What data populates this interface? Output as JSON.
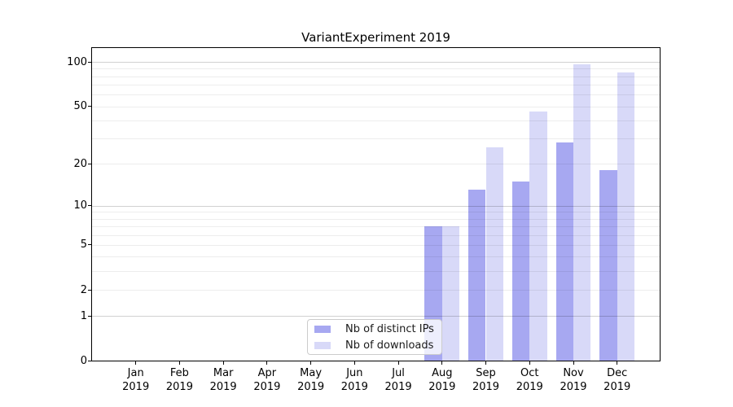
{
  "chart_data": {
    "type": "bar",
    "title": "VariantExperiment 2019",
    "categories": [
      "Jan 2019",
      "Feb 2019",
      "Mar 2019",
      "Apr 2019",
      "May 2019",
      "Jun 2019",
      "Jul 2019",
      "Aug 2019",
      "Sep 2019",
      "Oct 2019",
      "Nov 2019",
      "Dec 2019"
    ],
    "series": [
      {
        "name": "Nb of distinct IPs",
        "color": "#a7a8f1",
        "values": [
          0,
          0,
          0,
          0,
          0,
          0,
          0,
          7,
          13,
          15,
          28,
          18
        ]
      },
      {
        "name": "Nb of downloads",
        "color": "#d8d9f8",
        "values": [
          0,
          0,
          0,
          0,
          0,
          0,
          0,
          7,
          26,
          46,
          97,
          85
        ]
      }
    ],
    "xlabel": "",
    "ylabel": "",
    "yscale": "log1p",
    "ylim": [
      0,
      125
    ],
    "ytick_labels": [
      "0",
      "1",
      "2",
      "5",
      "10",
      "20",
      "50",
      "100"
    ],
    "ytick_values": [
      0,
      1,
      2,
      5,
      10,
      20,
      50,
      100
    ],
    "major_grid_values": [
      1,
      10,
      100
    ],
    "minor_grid_values": [
      2,
      3,
      4,
      5,
      6,
      7,
      8,
      9,
      20,
      30,
      40,
      50,
      60,
      70,
      80,
      90
    ],
    "grid": true,
    "legend_position": "lower center",
    "legend_entries": [
      "Nb of distinct IPs",
      "Nb of downloads"
    ],
    "colors": {
      "spine": "#000000",
      "major_grid": "rgba(0,0,0,0.18)",
      "minor_grid": "rgba(0,0,0,0.07)",
      "background": "#ffffff"
    }
  }
}
